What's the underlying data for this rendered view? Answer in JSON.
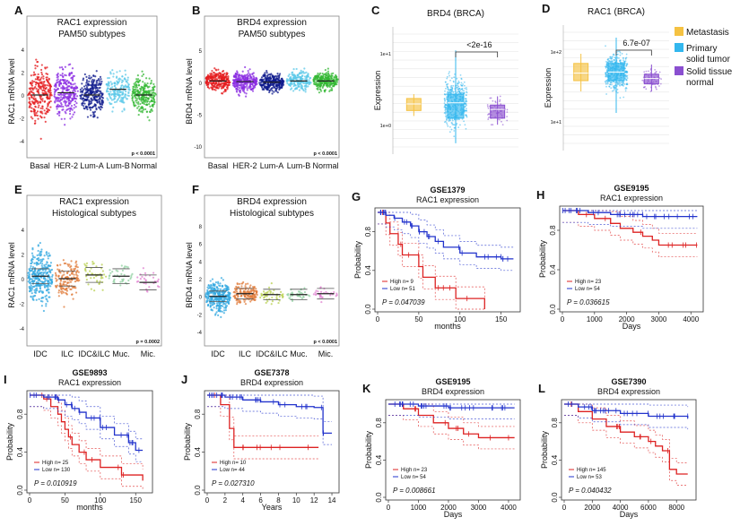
{
  "colors": {
    "basal": "#e41a1c",
    "her2": "#8a2be2",
    "luma": "#0d1a8c",
    "lumb": "#5bc8e8",
    "normal": "#35b835",
    "idc": "#33a8e0",
    "ilc": "#e07b39",
    "idcilc": "#b8d050",
    "muc": "#8fd0a0",
    "mic": "#e080d0",
    "metastasis": "#f5c242",
    "primary": "#33b7ee",
    "solid_normal": "#8a4fd0",
    "km_high": "#dd2222",
    "km_low": "#2233cc"
  },
  "panels": {
    "A": {
      "letter": "A",
      "title": "RAC1 expression",
      "subtitle": "PAM50 subtypes",
      "ylabel": "RAC1 mRNA level",
      "yticks": [
        "4",
        "2",
        "0",
        "-2",
        "-4"
      ],
      "categories": [
        "Basal",
        "HER-2",
        "Lum-A",
        "Lum-B",
        "Normal"
      ],
      "pval": "p < 0.0001"
    },
    "B": {
      "letter": "B",
      "title": "BRD4 expression",
      "subtitle": "PAM50 subtypes",
      "ylabel": "BRD4 mRNA level",
      "yticks": [
        "5",
        "0",
        "-5",
        "-10"
      ],
      "categories": [
        "Basal",
        "HER-2",
        "Lum-A",
        "Lum-B",
        "Normal"
      ],
      "pval": "p < 0.0001"
    },
    "C": {
      "letter": "C",
      "title": "BRD4 (BRCA)",
      "ylabel": "Expression",
      "yticks": [
        "1e+1",
        "1e+0"
      ],
      "pval": "<2e-16"
    },
    "D": {
      "letter": "D",
      "title": "RAC1 (BRCA)",
      "ylabel": "Expression",
      "yticks": [
        "1e+2",
        "1e+1"
      ],
      "pval": "6.7e-07"
    },
    "D_legend": [
      {
        "label": "Metastasis"
      },
      {
        "label": "Primary solid tumor"
      },
      {
        "label": "Solid tissue normal"
      }
    ],
    "E": {
      "letter": "E",
      "title": "RAC1 expression",
      "subtitle": "Histological subtypes",
      "ylabel": "RAC1 mRNA level",
      "yticks": [
        "4",
        "2",
        "0",
        "-2",
        "-4"
      ],
      "categories": [
        "IDC",
        "ILC",
        "IDC&ILC",
        "Muc.",
        "Mic."
      ],
      "pval": "p = 0.0002"
    },
    "F": {
      "letter": "F",
      "title": "BRD4 expression",
      "subtitle": "Histological subtypes",
      "ylabel": "BRD4 mRNA level",
      "yticks": [
        "8",
        "6",
        "4",
        "2",
        "0",
        "-2",
        "-4"
      ],
      "categories": [
        "IDC",
        "ILC",
        "IDC&ILC",
        "Muc.",
        "Mic."
      ],
      "pval": "p < 0.0001"
    },
    "G": {
      "letter": "G",
      "title": "GSE1379",
      "subtitle": "RAC1 expression",
      "ylabel": "Probability",
      "xlabel": "months",
      "yticks": [
        "0.8",
        "0.4",
        "0.0"
      ],
      "xticks": [
        "0",
        "50",
        "100",
        "150"
      ],
      "high": "High  n= 9",
      "low": "Low   n= 51",
      "pval": "P = 0.047039"
    },
    "H": {
      "letter": "H",
      "title": "GSE9195",
      "subtitle": "RAC1 expression",
      "ylabel": "Probability",
      "xlabel": "Days",
      "yticks": [
        "0.8",
        "0.4",
        "0.0"
      ],
      "xticks": [
        "0",
        "1000",
        "2000",
        "3000",
        "4000"
      ],
      "high": "High  n= 23",
      "low": "Low   n= 54",
      "pval": "P = 0.036615"
    },
    "I": {
      "letter": "I",
      "title": "GSE9893",
      "subtitle": "RAC1 expression",
      "ylabel": "Probability",
      "xlabel": "months",
      "yticks": [
        "0.8",
        "0.4",
        "0.0"
      ],
      "xticks": [
        "0",
        "50",
        "100",
        "150"
      ],
      "high": "High  n= 25",
      "low": "Low   n= 130",
      "pval": "P = 0.010919"
    },
    "J": {
      "letter": "J",
      "title": "GSE7378",
      "subtitle": "BRD4 expression",
      "ylabel": "Probability",
      "xlabel": "Years",
      "yticks": [
        "0.8",
        "0.4",
        "0.0"
      ],
      "xticks": [
        "0",
        "2",
        "4",
        "6",
        "8",
        "10",
        "12",
        "14"
      ],
      "high": "High  n= 10",
      "low": "Low   n= 44",
      "pval": "P = 0.027310"
    },
    "K": {
      "letter": "K",
      "title": "GSE9195",
      "subtitle": "BRD4 expression",
      "ylabel": "Probability",
      "xlabel": "Days",
      "yticks": [
        "0.8",
        "0.4",
        "0.0"
      ],
      "xticks": [
        "0",
        "1000",
        "2000",
        "3000",
        "4000"
      ],
      "high": "High  n= 23",
      "low": "Low   n= 54",
      "pval": "P = 0.008661"
    },
    "L": {
      "letter": "L",
      "title": "GSE7390",
      "subtitle": "BRD4 expression",
      "ylabel": "Probability",
      "xlabel": "Days",
      "yticks": [
        "0.8",
        "0.4",
        "0.0"
      ],
      "xticks": [
        "0",
        "2000",
        "4000",
        "6000",
        "8000"
      ],
      "high": "High  n= 145",
      "low": "Low   n= 53",
      "pval": "P = 0.040432"
    }
  },
  "chart_data": [
    {
      "panel": "A",
      "type": "scatter",
      "title": "RAC1 expression",
      "ylabel": "RAC1 mRNA level",
      "categories": [
        "Basal",
        "HER-2",
        "Lum-A",
        "Lum-B",
        "Normal"
      ],
      "medians": [
        0.0,
        0.2,
        0.0,
        0.5,
        0.0
      ],
      "spread": [
        2.0,
        1.8,
        1.6,
        1.5,
        1.4
      ],
      "ylim": [
        -5,
        5
      ],
      "pval": "p < 0.0001"
    },
    {
      "panel": "B",
      "type": "scatter",
      "title": "BRD4 expression",
      "ylabel": "BRD4 mRNA level",
      "categories": [
        "Basal",
        "HER-2",
        "Lum-A",
        "Lum-B",
        "Normal"
      ],
      "medians": [
        0.2,
        0.1,
        0.0,
        0.2,
        0.2
      ],
      "spread": [
        1.5,
        1.5,
        1.3,
        1.3,
        1.2
      ],
      "ylim": [
        -11,
        7
      ],
      "pval": "p < 0.0001"
    },
    {
      "panel": "C",
      "type": "box",
      "title": "BRD4 (BRCA)",
      "ylabel": "Expression",
      "categories": [
        "Metastasis",
        "Primary solid tumor",
        "Solid tissue normal"
      ],
      "q1": [
        3.5,
        2.8,
        2.8
      ],
      "median": [
        4.1,
        4.2,
        3.6
      ],
      "q3": [
        4.6,
        5.0,
        4.0
      ],
      "whisker_low": [
        3.0,
        0.5,
        2.2
      ],
      "whisker_high": [
        5.0,
        9.0,
        4.8
      ],
      "pval": "<2e-16"
    },
    {
      "panel": "D",
      "type": "box",
      "title": "RAC1 (BRCA)",
      "ylabel": "Expression",
      "categories": [
        "Metastasis",
        "Primary solid tumor",
        "Solid tissue normal"
      ],
      "q1": [
        6.0,
        6.0,
        5.7
      ],
      "median": [
        6.7,
        6.8,
        6.2
      ],
      "q3": [
        7.6,
        7.6,
        6.6
      ],
      "whisker_low": [
        5.0,
        3.0,
        5.0
      ],
      "whisker_high": [
        8.5,
        10.0,
        7.5
      ],
      "pval": "6.7e-07"
    },
    {
      "panel": "E",
      "type": "scatter",
      "title": "RAC1 expression",
      "ylabel": "RAC1 mRNA level",
      "categories": [
        "IDC",
        "ILC",
        "IDC&ILC",
        "Muc.",
        "Mic."
      ],
      "medians": [
        0.2,
        0.0,
        0.3,
        0.2,
        -0.3
      ],
      "spread": [
        2.0,
        1.5,
        1.2,
        1.0,
        0.8
      ],
      "ylim": [
        -5,
        5
      ],
      "pval": "p = 0.0002"
    },
    {
      "panel": "F",
      "type": "scatter",
      "title": "BRD4 expression",
      "ylabel": "BRD4 mRNA level",
      "categories": [
        "IDC",
        "ILC",
        "IDC&ILC",
        "Muc.",
        "Mic."
      ],
      "medians": [
        0.0,
        0.3,
        0.2,
        0.2,
        0.3
      ],
      "spread": [
        1.5,
        1.0,
        0.8,
        0.6,
        0.5
      ],
      "ylim": [
        -5,
        9
      ],
      "pval": "p < 0.0001"
    },
    {
      "panel": "G",
      "type": "line",
      "title": "GSE1379",
      "xlabel": "months",
      "ylabel": "Probability",
      "xlim": [
        0,
        170
      ],
      "ylim": [
        0,
        1
      ],
      "series": [
        {
          "name": "High",
          "x": [
            0,
            10,
            15,
            25,
            30,
            50,
            55,
            70,
            95,
            130
          ],
          "y": [
            1.0,
            0.89,
            0.78,
            0.67,
            0.56,
            0.44,
            0.33,
            0.22,
            0.11,
            0.0
          ]
        },
        {
          "name": "Low",
          "x": [
            0,
            10,
            20,
            30,
            40,
            50,
            60,
            70,
            80,
            100,
            120,
            150,
            165
          ],
          "y": [
            1.0,
            0.97,
            0.94,
            0.9,
            0.86,
            0.8,
            0.75,
            0.7,
            0.64,
            0.58,
            0.54,
            0.52,
            0.52
          ]
        }
      ],
      "pval": "P = 0.047039"
    },
    {
      "panel": "H",
      "type": "line",
      "title": "GSE9195",
      "xlabel": "Days",
      "ylabel": "Probability",
      "xlim": [
        0,
        4300
      ],
      "ylim": [
        0,
        1
      ],
      "series": [
        {
          "name": "High",
          "x": [
            0,
            500,
            1000,
            1500,
            1800,
            2200,
            2500,
            2800,
            3000,
            4200
          ],
          "y": [
            1.0,
            0.96,
            0.92,
            0.87,
            0.82,
            0.78,
            0.74,
            0.7,
            0.65,
            0.65
          ]
        },
        {
          "name": "Low",
          "x": [
            0,
            800,
            1500,
            2500,
            4200
          ],
          "y": [
            1.0,
            0.98,
            0.96,
            0.94,
            0.94
          ]
        }
      ],
      "pval": "P = 0.036615"
    },
    {
      "panel": "I",
      "type": "line",
      "title": "GSE9893",
      "xlabel": "months",
      "ylabel": "Probability",
      "xlim": [
        0,
        170
      ],
      "ylim": [
        0,
        1
      ],
      "series": [
        {
          "name": "High",
          "x": [
            0,
            20,
            30,
            40,
            45,
            50,
            55,
            60,
            70,
            80,
            100,
            130,
            160
          ],
          "y": [
            1.0,
            0.96,
            0.88,
            0.8,
            0.72,
            0.64,
            0.56,
            0.48,
            0.4,
            0.32,
            0.24,
            0.16,
            0.1
          ]
        },
        {
          "name": "Low",
          "x": [
            0,
            20,
            40,
            50,
            60,
            70,
            80,
            100,
            120,
            140,
            150,
            160
          ],
          "y": [
            1.0,
            0.98,
            0.95,
            0.9,
            0.86,
            0.82,
            0.76,
            0.66,
            0.58,
            0.5,
            0.42,
            0.42
          ]
        }
      ],
      "pval": "P = 0.010919"
    },
    {
      "panel": "J",
      "type": "line",
      "title": "GSE7378",
      "xlabel": "Years",
      "ylabel": "Probability",
      "xlim": [
        0,
        14.5
      ],
      "ylim": [
        0,
        1
      ],
      "series": [
        {
          "name": "High",
          "x": [
            0,
            1.5,
            2.5,
            3,
            12.5
          ],
          "y": [
            1.0,
            0.9,
            0.65,
            0.45,
            0.45
          ]
        },
        {
          "name": "Low",
          "x": [
            0,
            2,
            4,
            6,
            8,
            10,
            12,
            13,
            14
          ],
          "y": [
            1.0,
            0.98,
            0.95,
            0.93,
            0.9,
            0.88,
            0.87,
            0.6,
            0.6
          ]
        }
      ],
      "pval": "P = 0.027310"
    },
    {
      "panel": "K",
      "type": "line",
      "title": "GSE9195",
      "xlabel": "Days",
      "ylabel": "Probability",
      "xlim": [
        0,
        4300
      ],
      "ylim": [
        0,
        1
      ],
      "series": [
        {
          "name": "High",
          "x": [
            0,
            500,
            1000,
            1500,
            2000,
            2500,
            3000,
            4200
          ],
          "y": [
            1.0,
            0.95,
            0.88,
            0.8,
            0.74,
            0.68,
            0.64,
            0.64
          ]
        },
        {
          "name": "Low",
          "x": [
            0,
            1000,
            2000,
            4200
          ],
          "y": [
            1.0,
            0.98,
            0.96,
            0.96
          ]
        }
      ],
      "pval": "P = 0.008661"
    },
    {
      "panel": "L",
      "type": "line",
      "title": "GSE7390",
      "xlabel": "Days",
      "ylabel": "Probability",
      "xlim": [
        0,
        9200
      ],
      "ylim": [
        0,
        1
      ],
      "series": [
        {
          "name": "High",
          "x": [
            0,
            1000,
            2000,
            3000,
            4000,
            5000,
            6000,
            6500,
            7000,
            7500,
            8000,
            8800
          ],
          "y": [
            1.0,
            0.92,
            0.84,
            0.76,
            0.7,
            0.65,
            0.6,
            0.55,
            0.5,
            0.3,
            0.25,
            0.25
          ]
        },
        {
          "name": "Low",
          "x": [
            0,
            1000,
            2000,
            4000,
            6000,
            8800
          ],
          "y": [
            1.0,
            0.97,
            0.93,
            0.9,
            0.87,
            0.85
          ]
        }
      ],
      "pval": "P = 0.040432"
    }
  ]
}
